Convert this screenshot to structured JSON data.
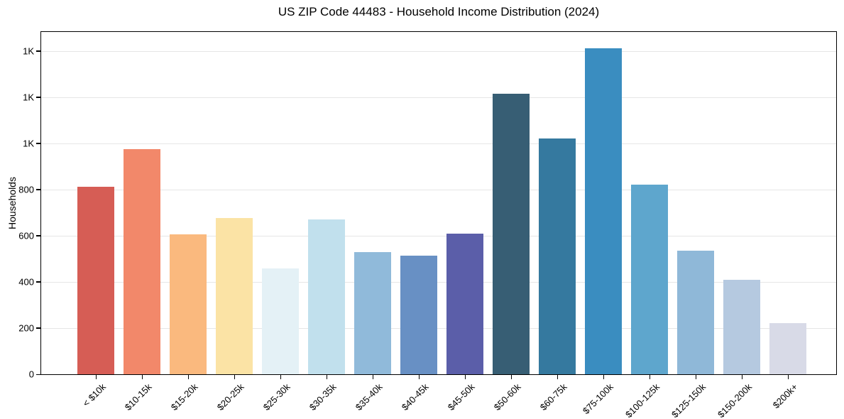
{
  "chart_data": {
    "type": "bar",
    "title": "US ZIP Code 44483 - Household Income Distribution (2024)",
    "xlabel": "",
    "ylabel": "Households",
    "categories": [
      "< $10k",
      "$10-15k",
      "$15-20k",
      "$20-25k",
      "$25-30k",
      "$30-35k",
      "$35-40k",
      "$40-45k",
      "$45-50k",
      "$50-60k",
      "$60-75k",
      "$75-100k",
      "$100-125k",
      "$125-150k",
      "$150-200k",
      "$200k+"
    ],
    "values": [
      812,
      976,
      605,
      676,
      459,
      671,
      528,
      514,
      609,
      1216,
      1021,
      1413,
      823,
      534,
      409,
      223
    ],
    "bar_colors": [
      "#d65d55",
      "#f2886a",
      "#fab97e",
      "#fbe3a5",
      "#e4f1f6",
      "#c1e0ed",
      "#90bada",
      "#6890c4",
      "#5b5ea9",
      "#375e74",
      "#35799f",
      "#3a8dc0",
      "#5ea6cd",
      "#8fb8d8",
      "#b5c9e0",
      "#d8dae7"
    ],
    "ylim": [
      0,
      1483
    ],
    "yticks": {
      "values": [
        0,
        200,
        400,
        600,
        800,
        1000,
        1200,
        1400
      ],
      "labels": [
        "0",
        "200",
        "400",
        "600",
        "800",
        "1K",
        "1K",
        "1K"
      ]
    },
    "grid": "horizontal-only",
    "gridline_color": "#e6e6e6",
    "axis_color": "#000000",
    "background_color": "#ffffff",
    "legend": "none"
  }
}
